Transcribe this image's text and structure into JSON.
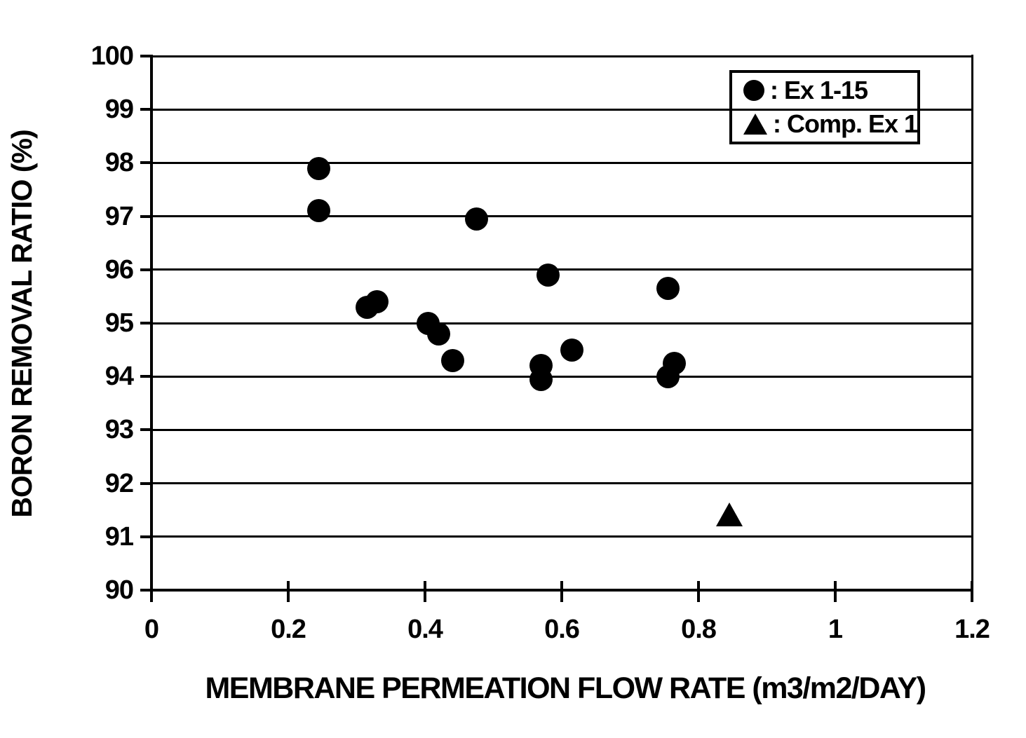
{
  "chart_data": {
    "type": "scatter",
    "title": "",
    "xlabel": "MEMBRANE PERMEATION FLOW RATE (m3/m2/DAY)",
    "ylabel": "BORON REMOVAL RATIO (%)",
    "xlim": [
      0,
      1.2
    ],
    "ylim": [
      90,
      100
    ],
    "x_ticks": [
      0,
      0.2,
      0.4,
      0.6,
      0.8,
      1,
      1.2
    ],
    "x_tick_labels": [
      "0",
      "0.2",
      "0.4",
      "0.6",
      "0.8",
      "1",
      "1.2"
    ],
    "y_ticks": [
      90,
      91,
      92,
      93,
      94,
      95,
      96,
      97,
      98,
      99,
      100
    ],
    "y_tick_labels": [
      "90",
      "91",
      "92",
      "93",
      "94",
      "95",
      "96",
      "97",
      "98",
      "99",
      "100"
    ],
    "grid": "horizontal-only",
    "legend_position": "top-right-inside",
    "marker_color": "#000000",
    "background_color": "#ffffff",
    "series": [
      {
        "name": "Ex 1-15",
        "marker": "circle",
        "points": [
          [
            0.245,
            97.9
          ],
          [
            0.245,
            97.1
          ],
          [
            0.315,
            95.3
          ],
          [
            0.33,
            95.4
          ],
          [
            0.405,
            95.0
          ],
          [
            0.42,
            94.8
          ],
          [
            0.44,
            94.3
          ],
          [
            0.475,
            96.95
          ],
          [
            0.57,
            94.2
          ],
          [
            0.57,
            93.95
          ],
          [
            0.58,
            95.9
          ],
          [
            0.615,
            94.5
          ],
          [
            0.755,
            95.65
          ],
          [
            0.755,
            94.0
          ],
          [
            0.765,
            94.25
          ]
        ]
      },
      {
        "name": "Comp. Ex 1",
        "marker": "triangle",
        "points": [
          [
            0.845,
            91.4
          ]
        ]
      }
    ]
  },
  "legend": {
    "items": [
      {
        "marker": "circle-icon",
        "label": ": Ex 1-15"
      },
      {
        "marker": "triangle-icon",
        "label": ": Comp. Ex 1"
      }
    ]
  },
  "axes": {
    "y_title": "BORON REMOVAL RATIO (%)",
    "x_title": "MEMBRANE PERMEATION FLOW RATE (m3/m2/DAY)"
  }
}
